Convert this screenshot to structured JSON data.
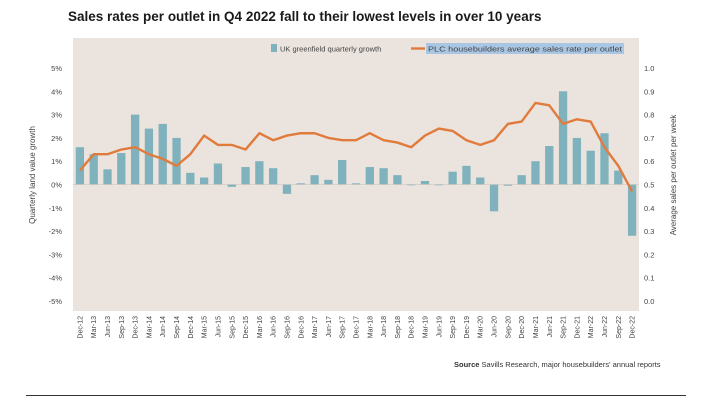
{
  "title": "Sales rates per outlet in Q4 2022 fall to their lowest levels in over 10 years",
  "source": {
    "label": "Source",
    "text": "Savills Research, major housebuilders' annual reports"
  },
  "colors": {
    "panel": "#ebe3dd",
    "bar": "#7fb2bd",
    "line": "#e07b3c",
    "legend_highlight": "#a9c6e3",
    "axis_text": "#444444"
  },
  "chart_data": {
    "type": "bar",
    "categories": [
      "Dec-12",
      "Mar-13",
      "Jun-13",
      "Sep-13",
      "Dec-13",
      "Mar-14",
      "Jun-14",
      "Sep-14",
      "Dec-14",
      "Mar-15",
      "Jun-15",
      "Sep-15",
      "Dec-15",
      "Mar-16",
      "Jun-16",
      "Sep-16",
      "Dec-16",
      "Mar-17",
      "Jun-17",
      "Sep-17",
      "Dec-17",
      "Mar-18",
      "Jun-18",
      "Sep-18",
      "Dec-18",
      "Mar-19",
      "Jun-19",
      "Sep-19",
      "Dec-19",
      "Mar-20",
      "Jun-20",
      "Sep-20",
      "Dec-20",
      "Mar-21",
      "Jun-21",
      "Sep-21",
      "Dec-21",
      "Mar-22",
      "Jun-22",
      "Sep-22",
      "Dec-22"
    ],
    "x_tick_labels": [
      "Dec-12",
      "Mar-13",
      "Jun-13",
      "Sep-13",
      "Dec-13",
      "Mar-14",
      "Jun-14",
      "Sep-14",
      "Dec-14",
      "Mar-15",
      "Jun-15",
      "Sep-15",
      "Dec-15",
      "Mar-16",
      "Jun-16",
      "Sep-16",
      "Dec-16",
      "Mar-17",
      "Jun-17",
      "Sep-17",
      "Dec-17",
      "Mar-18",
      "Jun-18",
      "Sep-18",
      "Dec-18",
      "Mar-19",
      "Jun-19",
      "Sep-19",
      "Dec-19",
      "Mar-20",
      "Jun-20",
      "Sep-20",
      "Dec-20",
      "Mar-21",
      "Jun-21",
      "Sep-21",
      "Dec-21",
      "Mar-22",
      "Jun-22",
      "Sep-22",
      "Dec-22"
    ],
    "series": [
      {
        "name": "UK greenfield quarterly growth",
        "type": "bar",
        "axis": "left",
        "values": [
          1.6,
          1.3,
          0.65,
          1.35,
          3.0,
          2.4,
          2.6,
          2.0,
          0.5,
          0.3,
          0.9,
          -0.1,
          0.75,
          1.0,
          0.7,
          -0.4,
          0.05,
          0.4,
          0.2,
          1.05,
          0.05,
          0.75,
          0.7,
          0.4,
          0.0,
          0.15,
          0.0,
          0.55,
          0.8,
          0.3,
          -1.15,
          -0.05,
          0.4,
          1.0,
          1.65,
          4.0,
          2.0,
          1.45,
          2.2,
          0.6,
          -2.2
        ]
      },
      {
        "name": "PLC housebuilders average sales rate per outlet",
        "type": "line",
        "axis": "right",
        "values": [
          0.56,
          0.63,
          0.63,
          0.65,
          0.66,
          0.63,
          0.61,
          0.58,
          0.63,
          0.71,
          0.67,
          0.67,
          0.65,
          0.72,
          0.69,
          0.71,
          0.72,
          0.72,
          0.7,
          0.69,
          0.69,
          0.72,
          0.69,
          0.68,
          0.66,
          0.71,
          0.74,
          0.73,
          0.69,
          0.67,
          0.69,
          0.76,
          0.77,
          0.85,
          0.84,
          0.76,
          0.78,
          0.77,
          0.66,
          0.58,
          0.47
        ]
      }
    ],
    "ylabel": "Quarterly land value growth",
    "y2label": "Average sales per outlet per week",
    "ylim": [
      -5,
      5
    ],
    "y2lim": [
      0,
      1.0
    ],
    "yticks": [
      "5%",
      "4%",
      "3%",
      "2%",
      "1%",
      "0%",
      "-1%",
      "-2%",
      "-3%",
      "-4%",
      "-5%"
    ],
    "y2ticks": [
      "1.0",
      "0.9",
      "0.8",
      "0.7",
      "0.6",
      "0.5",
      "0.4",
      "0.3",
      "0.2",
      "0.1",
      "0.0"
    ],
    "grid": false,
    "legend_position": "top-right"
  }
}
